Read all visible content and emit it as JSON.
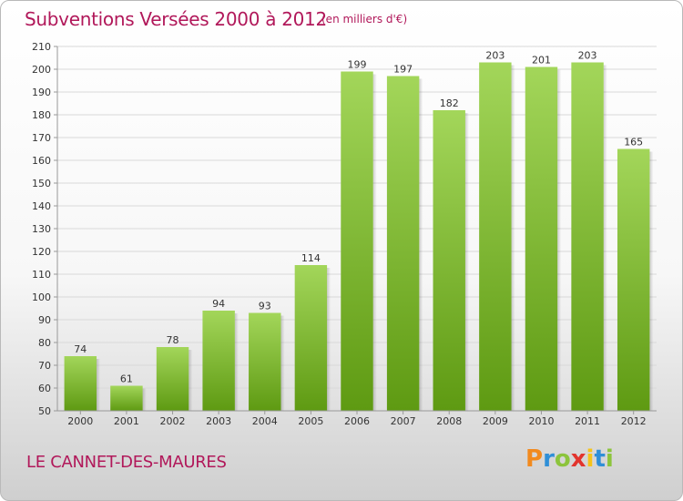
{
  "header": {
    "title": "Subventions Versées 2000 à 2012",
    "unit": "(en milliers d'€)"
  },
  "footer": {
    "commune": "LE CANNET-DES-MAURES",
    "logo_letters": [
      "P",
      "r",
      "o",
      "x",
      "i",
      "t",
      "i"
    ],
    "logo_colors": [
      "#f28a1e",
      "#2f8fd7",
      "#8cc43c",
      "#e2342d",
      "#f5c31a",
      "#2f8fd7",
      "#8cc43c"
    ]
  },
  "chart_data": {
    "type": "bar",
    "categories": [
      "2000",
      "2001",
      "2002",
      "2003",
      "2004",
      "2005",
      "2006",
      "2007",
      "2008",
      "2009",
      "2010",
      "2011",
      "2012"
    ],
    "values": [
      74,
      61,
      78,
      94,
      93,
      114,
      199,
      197,
      182,
      203,
      201,
      203,
      165
    ],
    "ylim": [
      50,
      210
    ],
    "yticks": [
      50,
      60,
      70,
      80,
      90,
      100,
      110,
      120,
      130,
      140,
      150,
      160,
      170,
      180,
      190,
      200,
      210
    ],
    "grid": true,
    "colors": {
      "bar_light": "#a3d65a",
      "bar_dark": "#5e9a12",
      "grid": "#d9d9d9",
      "axis": "#999999"
    }
  }
}
